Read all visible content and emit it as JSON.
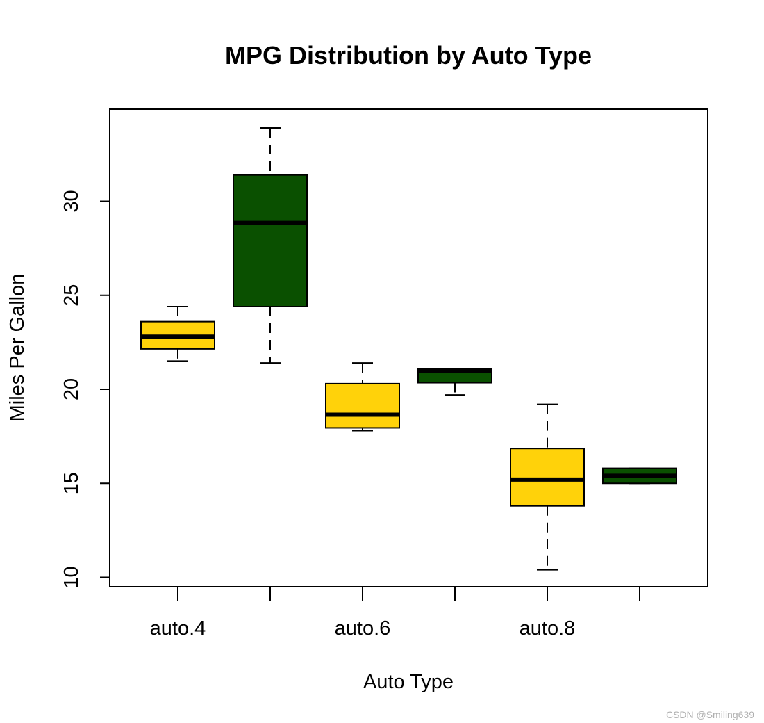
{
  "chart_data": {
    "type": "boxplot",
    "title": "MPG Distribution by Auto Type",
    "xlabel": "Auto Type",
    "ylabel": "Miles Per Gallon",
    "tick_labels_x": [
      "auto.4",
      "",
      "auto.6",
      "",
      "auto.8",
      ""
    ],
    "yticks": [
      10,
      15,
      20,
      25,
      30
    ],
    "ylim": [
      9.5,
      34.9
    ],
    "grid": false,
    "colors": {
      "yellow": "#FFD20A",
      "green": "#0A5000",
      "line": "#000000"
    },
    "boxes": [
      {
        "category": "auto.4",
        "fill": "yellow",
        "whisker_low": 21.5,
        "q1": 22.15,
        "median": 22.8,
        "q3": 23.6,
        "whisker_high": 24.4
      },
      {
        "category": "",
        "fill": "green",
        "whisker_low": 21.4,
        "q1": 24.4,
        "median": 28.85,
        "q3": 31.4,
        "whisker_high": 33.9
      },
      {
        "category": "auto.6",
        "fill": "yellow",
        "whisker_low": 17.8,
        "q1": 17.95,
        "median": 18.65,
        "q3": 20.3,
        "whisker_high": 21.4
      },
      {
        "category": "",
        "fill": "green",
        "whisker_low": 19.7,
        "q1": 20.35,
        "median": 21.0,
        "q3": 21.1,
        "whisker_high": 21.1
      },
      {
        "category": "auto.8",
        "fill": "yellow",
        "whisker_low": 10.4,
        "q1": 13.8,
        "median": 15.2,
        "q3": 16.85,
        "whisker_high": 19.2
      },
      {
        "category": "",
        "fill": "green",
        "whisker_low": 15.0,
        "q1": 15.0,
        "median": 15.4,
        "q3": 15.8,
        "whisker_high": 15.8
      }
    ]
  },
  "watermark": "CSDN @Smiling639"
}
